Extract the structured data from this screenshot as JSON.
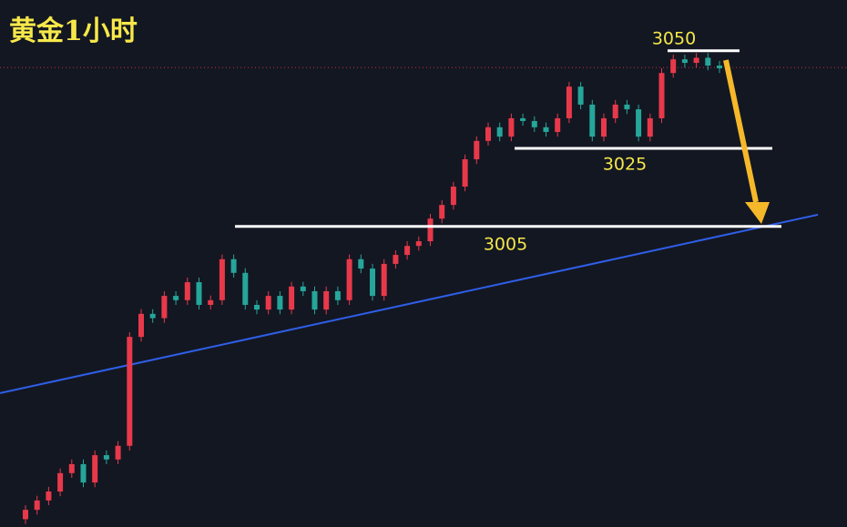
{
  "chart_data": {
    "type": "candlestick",
    "title": "黄金1小时",
    "up_color": "#e8394a",
    "down_color": "#26a69a",
    "ylim": [
      2928,
      3063
    ],
    "open": [
      2930.0,
      2932.4,
      2934.8,
      2937.1,
      2941.8,
      2944.1,
      2939.4,
      2946.4,
      2945.3,
      2948.8,
      2976.7,
      2982.6,
      2981.5,
      2987.2,
      2986.1,
      2990.7,
      2984.9,
      2986.1,
      2996.6,
      2993.1,
      2984.9,
      2983.7,
      2987.2,
      2983.7,
      2989.6,
      2988.4,
      2983.7,
      2988.4,
      2986.1,
      2996.6,
      2994.2,
      2987.2,
      2995.4,
      2997.7,
      3000.0,
      3001.2,
      3007.0,
      3010.5,
      3015.2,
      3022.2,
      3026.9,
      3030.4,
      3028.0,
      3032.7,
      3032.0,
      3030.4,
      3029.2,
      3032.7,
      3040.8,
      3036.2,
      3028.0,
      3032.7,
      3036.2,
      3035.0,
      3028.0,
      3032.7,
      3044.3,
      3047.8,
      3046.9,
      3048.2,
      3046.2
    ],
    "high": [
      2933.6,
      2936.0,
      2938.3,
      2943.0,
      2945.3,
      2945.3,
      2947.6,
      2947.6,
      2950.0,
      2977.9,
      2983.8,
      2983.8,
      2988.4,
      2988.4,
      2991.9,
      2991.9,
      2987.3,
      2997.8,
      2997.8,
      2994.3,
      2986.1,
      2988.4,
      2988.4,
      2990.8,
      2990.8,
      2989.6,
      2989.6,
      2989.6,
      2997.8,
      2997.8,
      2995.4,
      2996.6,
      2998.9,
      3001.2,
      3002.4,
      3008.2,
      3011.7,
      3016.4,
      3023.4,
      3028.1,
      3031.6,
      3031.6,
      3033.9,
      3033.9,
      3033.2,
      3031.6,
      3033.9,
      3042.0,
      3042.0,
      3037.4,
      3033.9,
      3037.4,
      3037.4,
      3036.2,
      3033.9,
      3045.5,
      3049.0,
      3049.0,
      3049.4,
      3049.4,
      3047.4
    ],
    "low": [
      2928.8,
      2931.2,
      2933.6,
      2935.9,
      2940.6,
      2938.2,
      2938.2,
      2944.1,
      2944.1,
      2947.6,
      2975.5,
      2980.3,
      2980.3,
      2984.9,
      2984.9,
      2983.7,
      2983.7,
      2984.9,
      2991.9,
      2983.7,
      2982.5,
      2982.5,
      2982.5,
      2982.5,
      2987.2,
      2982.5,
      2982.5,
      2984.9,
      2984.9,
      2993.0,
      2986.0,
      2986.0,
      2994.2,
      2996.5,
      2998.8,
      3000.0,
      3005.8,
      3009.3,
      3014.0,
      3021.0,
      3025.7,
      3026.8,
      3026.8,
      3030.8,
      3029.2,
      3028.0,
      3028.0,
      3031.5,
      3035.0,
      3026.8,
      3026.8,
      3031.5,
      3033.8,
      3026.8,
      3026.8,
      3031.5,
      3043.1,
      3045.7,
      3045.7,
      3045.0,
      3044.3
    ],
    "close": [
      2932.4,
      2934.8,
      2937.1,
      2941.8,
      2944.1,
      2939.4,
      2946.4,
      2945.3,
      2948.8,
      2976.7,
      2982.6,
      2981.5,
      2987.2,
      2986.1,
      2990.7,
      2984.9,
      2986.1,
      2996.6,
      2993.1,
      2984.9,
      2983.7,
      2987.2,
      2983.7,
      2989.6,
      2988.4,
      2983.7,
      2988.4,
      2986.1,
      2996.6,
      2994.2,
      2987.2,
      2995.4,
      2997.7,
      3000.0,
      3001.2,
      3007.0,
      3010.5,
      3015.2,
      3022.2,
      3026.9,
      3030.4,
      3028.0,
      3032.7,
      3032.0,
      3030.4,
      3029.2,
      3032.7,
      3040.8,
      3036.2,
      3028.0,
      3032.7,
      3036.2,
      3035.0,
      3028.0,
      3032.7,
      3044.3,
      3047.8,
      3046.9,
      3048.2,
      3046.2,
      3045.5
    ],
    "levels": [
      3050,
      3025,
      3005
    ],
    "trendline": [
      2962.3,
      3008.0
    ],
    "trendline_color": "#2f5fe8",
    "price_line": 3045.7
  }
}
